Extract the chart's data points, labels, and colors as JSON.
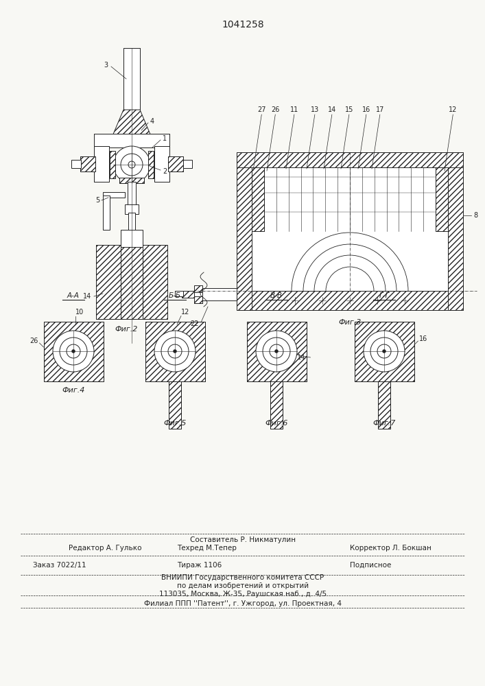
{
  "patent_number": "1041258",
  "bg": "#f8f8f4",
  "lc": "#222222",
  "fig2_caption": "Фиг.2",
  "fig3_caption": "Фиг.3",
  "fig4_caption": "Фиг.4",
  "fig5_caption": "Фиг.5",
  "fig6_caption": "Фиг.6",
  "fig7_caption": "Фиг.7",
  "sec_aa": "А-А",
  "sec_bb": "Б-Б",
  "sec_vv": "В-В",
  "sec_gg": "Г-Г",
  "f_ed": "Редактор А. Гулько",
  "f_sost": "Составитель Р. Никматулин",
  "f_tex": "Техред М.Тепер",
  "f_korr": "Корректор Л. Бокшан",
  "f_zakaz": "Заказ 7022/11",
  "f_tirazh": "Тираж 1106",
  "f_podsip": "Подписное",
  "f_vniip1": "ВНИИПИ Государственного комитета СССР",
  "f_vniip2": "по делам изобретений и открытий",
  "f_vniip3": "113035, Москва, Ж-35, Раушская наб., д. 4/5",
  "f_filial": "Филиал ППП ''Патент'', г. Ужгород, ул. Проектная, 4"
}
